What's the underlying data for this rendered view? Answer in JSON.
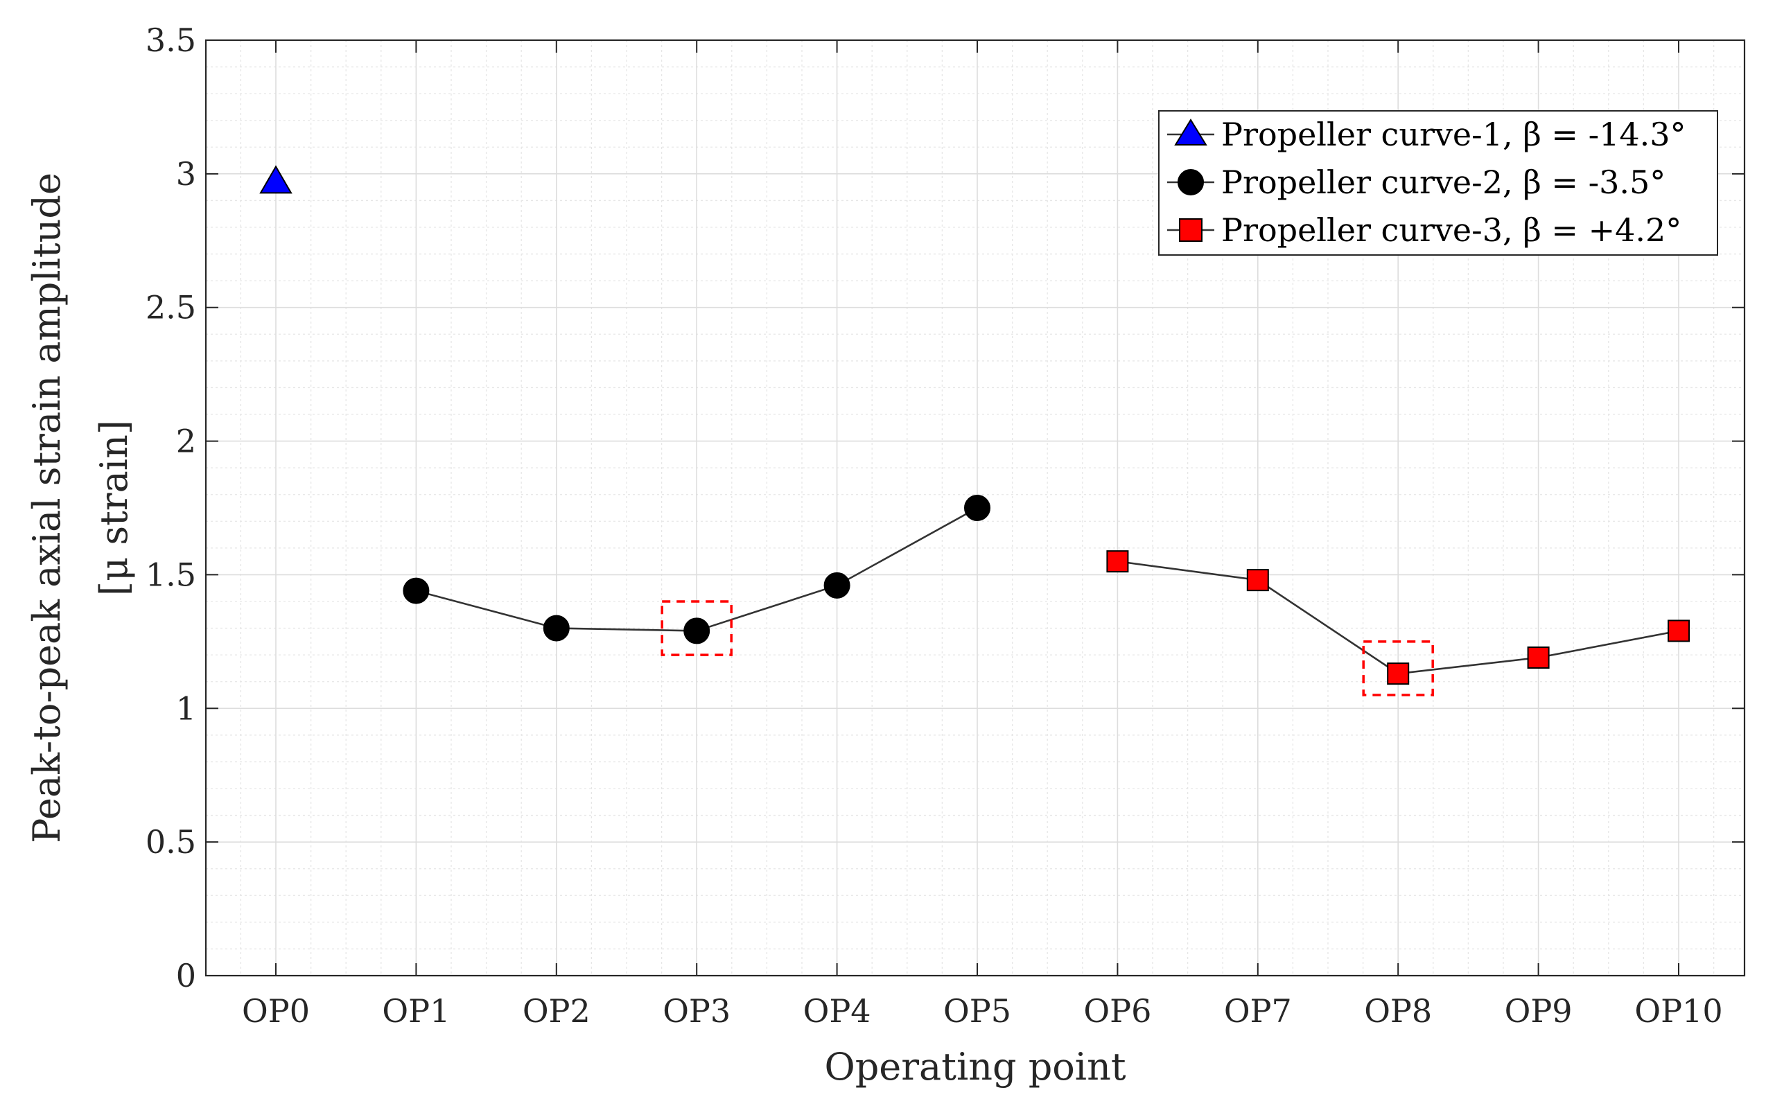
{
  "chart_data": {
    "type": "line",
    "title": "",
    "xlabel": "Operating point",
    "ylabel_line1": "Peak-to-peak axial strain amplitude",
    "ylabel_line2": "[μ strain]",
    "categories": [
      "OP0",
      "OP1",
      "OP2",
      "OP3",
      "OP4",
      "OP5",
      "OP6",
      "OP7",
      "OP8",
      "OP9",
      "OP10"
    ],
    "ylim": [
      0,
      3.5
    ],
    "yticks": [
      0,
      0.5,
      1,
      1.5,
      2,
      2.5,
      3,
      3.5
    ],
    "ytick_labels": [
      "0",
      "0.5",
      "1",
      "1.5",
      "2",
      "2.5",
      "3",
      "3.5"
    ],
    "grid": true,
    "legend_position": "top-right",
    "series": [
      {
        "name": "Propeller curve-1, β = -14.3°",
        "marker": "triangle",
        "color": "#0000ff",
        "points": [
          {
            "x": "OP0",
            "y": 2.97
          }
        ]
      },
      {
        "name": "Propeller curve-2, β = -3.5°",
        "marker": "circle",
        "color": "#000000",
        "points": [
          {
            "x": "OP1",
            "y": 1.44
          },
          {
            "x": "OP2",
            "y": 1.3
          },
          {
            "x": "OP3",
            "y": 1.29
          },
          {
            "x": "OP4",
            "y": 1.46
          },
          {
            "x": "OP5",
            "y": 1.75
          }
        ]
      },
      {
        "name": "Propeller curve-3, β = +4.2°",
        "marker": "square",
        "color": "#ff0000",
        "points": [
          {
            "x": "OP6",
            "y": 1.55
          },
          {
            "x": "OP7",
            "y": 1.48
          },
          {
            "x": "OP8",
            "y": 1.13
          },
          {
            "x": "OP9",
            "y": 1.19
          },
          {
            "x": "OP10",
            "y": 1.29
          }
        ]
      }
    ],
    "highlights": [
      {
        "x": "OP3",
        "y_range": [
          1.2,
          1.4
        ],
        "color": "#ff0000"
      },
      {
        "x": "OP8",
        "y_range": [
          1.05,
          1.25
        ],
        "color": "#ff0000"
      }
    ]
  }
}
